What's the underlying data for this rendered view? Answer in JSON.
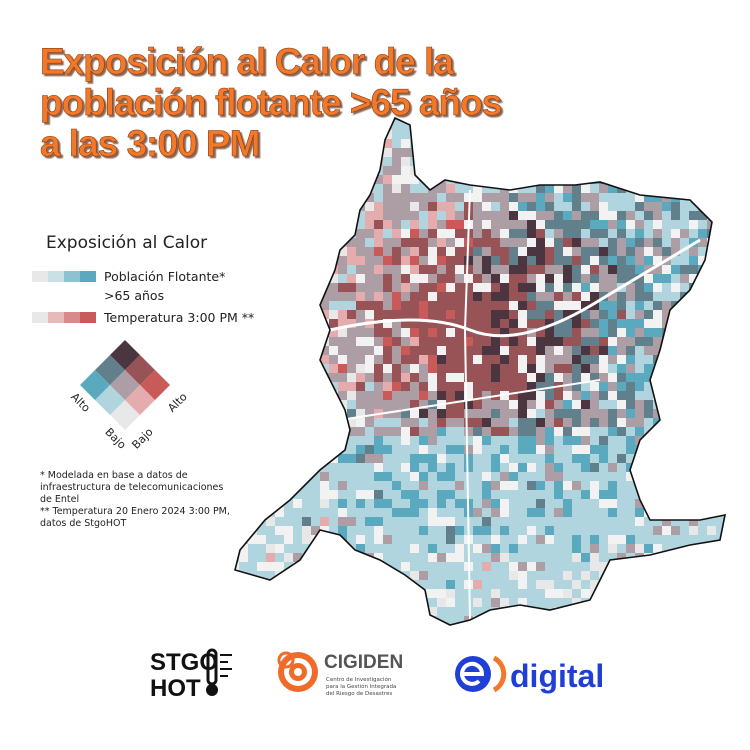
{
  "header": {
    "title_lines": [
      "Exposición al Calor de la",
      "población flotante >65 años",
      "a las 3:00 PM"
    ]
  },
  "legend": {
    "title": "Exposición al Calor",
    "population_lines": [
      "Población Flotante*",
      ">65 años"
    ],
    "temperature": "Temperatura 3:00 PM **",
    "axis_labels": [
      "Alto",
      "Bajo",
      "Bajo",
      "Alto"
    ]
  },
  "notes": [
    "* Modelada en base a datos de",
    "infraestructura de telecomunicaciones",
    "de Entel",
    "** Temperatura 20 Enero 2024 3:00 PM,",
    "datos de StgoHOT"
  ],
  "logos": {
    "stgohot": [
      "STGO",
      "HOT"
    ],
    "cigiden": {
      "name": "CIGIDEN",
      "tagline": [
        "Centro de Investigación",
        "para la Gestión Integrada",
        "del Riesgo de Desastres"
      ]
    },
    "entel": "digital"
  }
}
